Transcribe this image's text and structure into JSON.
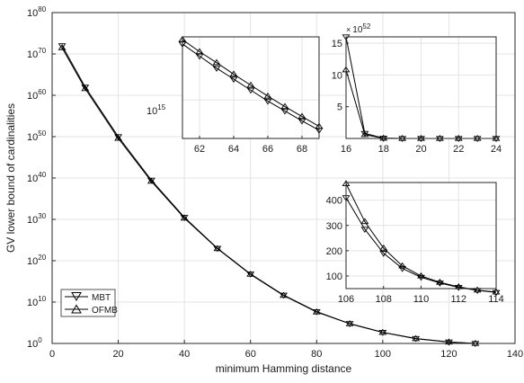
{
  "chart_data": [
    {
      "id": "main",
      "type": "line",
      "xlabel": "minimum Hamming distance",
      "ylabel": "GV lower bound of cardinalities",
      "xlim": [
        0,
        140
      ],
      "ylim_exp": [
        0,
        80
      ],
      "yscale": "log",
      "grid": true,
      "x_ticks": [
        "0",
        "20",
        "40",
        "60",
        "80",
        "100",
        "120",
        "140"
      ],
      "y_ticks": [
        {
          "base": "10",
          "exp": "0"
        },
        {
          "base": "10",
          "exp": "10"
        },
        {
          "base": "10",
          "exp": "20"
        },
        {
          "base": "10",
          "exp": "30"
        },
        {
          "base": "10",
          "exp": "40"
        },
        {
          "base": "10",
          "exp": "50"
        },
        {
          "base": "10",
          "exp": "60"
        },
        {
          "base": "10",
          "exp": "70"
        },
        {
          "base": "10",
          "exp": "80"
        }
      ],
      "legend_position": "bottom-left",
      "series": [
        {
          "name": "MBT",
          "marker": "triangle-down",
          "x": [
            3,
            10,
            20,
            30,
            40,
            50,
            60,
            70,
            80,
            90,
            100,
            110,
            120,
            128
          ],
          "log10_y": [
            72,
            62,
            50,
            39.5,
            30.5,
            23,
            16.8,
            11.7,
            7.7,
            4.8,
            2.7,
            1.2,
            0.35,
            0
          ]
        },
        {
          "name": "OFMB",
          "marker": "triangle-up",
          "x": [
            3,
            10,
            20,
            30,
            40,
            50,
            60,
            70,
            80,
            90,
            100,
            110,
            120,
            128
          ],
          "log10_y": [
            71.5,
            61.6,
            49.6,
            39.2,
            30.3,
            22.9,
            16.7,
            11.6,
            7.6,
            4.75,
            2.65,
            1.15,
            0.33,
            0
          ]
        }
      ]
    },
    {
      "id": "inset-top-left",
      "type": "line",
      "xlim": [
        61,
        69
      ],
      "yscale": "log",
      "x_ticks": [
        "62",
        "64",
        "66",
        "68"
      ],
      "y_tick_label": {
        "base": "10",
        "exp": "15"
      },
      "grid": true,
      "series": [
        {
          "name": "MBT",
          "marker": "triangle-down",
          "x": [
            61,
            62,
            63,
            64,
            65,
            66,
            67,
            68,
            69
          ],
          "log10_y": [
            16.02,
            15.8,
            15.58,
            15.38,
            15.18,
            14.98,
            14.8,
            14.62,
            14.45
          ]
        },
        {
          "name": "OFMB",
          "marker": "triangle-up",
          "x": [
            61,
            62,
            63,
            64,
            65,
            66,
            67,
            68,
            69
          ],
          "log10_y": [
            16.1,
            15.88,
            15.68,
            15.47,
            15.27,
            15.07,
            14.88,
            14.7,
            14.52
          ]
        }
      ]
    },
    {
      "id": "inset-top-right",
      "type": "line",
      "xlim": [
        16,
        24
      ],
      "ylim": [
        0,
        16
      ],
      "x_ticks": [
        "16",
        "18",
        "20",
        "22",
        "24"
      ],
      "y_ticks": [
        "5",
        "10",
        "15"
      ],
      "multiplier": {
        "base": "10",
        "exp": "52"
      },
      "grid": true,
      "series": [
        {
          "name": "MBT",
          "marker": "triangle-down",
          "x": [
            16,
            17,
            18,
            19,
            20,
            21,
            22,
            23,
            24
          ],
          "y": [
            16,
            0.8,
            0.05,
            0,
            0,
            0,
            0,
            0,
            0
          ]
        },
        {
          "name": "OFMB",
          "marker": "triangle-up",
          "x": [
            16,
            17,
            18,
            19,
            20,
            21,
            22,
            23,
            24
          ],
          "y": [
            10.8,
            0.6,
            0.04,
            0,
            0,
            0,
            0,
            0,
            0
          ]
        }
      ]
    },
    {
      "id": "inset-bottom-right",
      "type": "line",
      "xlim": [
        106,
        114
      ],
      "ylim": [
        50,
        470
      ],
      "x_ticks": [
        "106",
        "108",
        "110",
        "112",
        "114"
      ],
      "y_ticks": [
        "100",
        "200",
        "300",
        "400"
      ],
      "grid": true,
      "series": [
        {
          "name": "MBT",
          "marker": "triangle-down",
          "x": [
            106,
            107,
            108,
            109,
            110,
            111,
            112,
            113,
            114
          ],
          "y": [
            410,
            285,
            190,
            130,
            95,
            72,
            55,
            43,
            35
          ]
        },
        {
          "name": "OFMB",
          "marker": "triangle-up",
          "x": [
            106,
            107,
            108,
            109,
            110,
            111,
            112,
            113,
            114
          ],
          "y": [
            465,
            315,
            210,
            140,
            100,
            75,
            57,
            44,
            36
          ]
        }
      ]
    }
  ],
  "legend": {
    "items": [
      {
        "label": "MBT",
        "marker": "triangle-down"
      },
      {
        "label": "OFMB",
        "marker": "triangle-up"
      }
    ]
  }
}
